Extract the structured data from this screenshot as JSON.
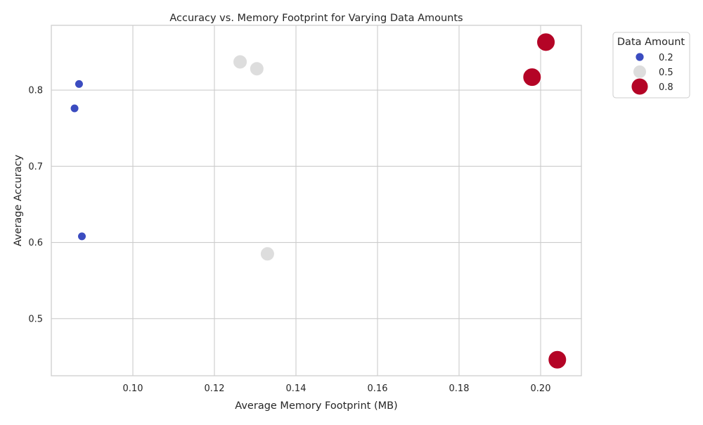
{
  "chart_data": {
    "type": "scatter",
    "title": "Accuracy vs. Memory Footprint for Varying Data Amounts",
    "xlabel": "Average Memory Footprint (MB)",
    "ylabel": "Average Accuracy",
    "xlim": [
      0.08,
      0.21
    ],
    "ylim": [
      0.425,
      0.885
    ],
    "xticks": [
      0.1,
      0.12,
      0.14,
      0.16,
      0.18,
      0.2
    ],
    "xtick_labels": [
      "0.10",
      "0.12",
      "0.14",
      "0.16",
      "0.18",
      "0.20"
    ],
    "yticks": [
      0.5,
      0.6,
      0.7,
      0.8
    ],
    "ytick_labels": [
      "0.5",
      "0.6",
      "0.7",
      "0.8"
    ],
    "grid": true,
    "legend": {
      "title": "Data Amount",
      "placement": "outside-top-right",
      "entries": [
        "0.2",
        "0.5",
        "0.8"
      ]
    },
    "series": [
      {
        "name": "0.2",
        "color": "#3b4cc0",
        "points": [
          {
            "x": 0.0868,
            "y": 0.808
          },
          {
            "x": 0.0857,
            "y": 0.776
          },
          {
            "x": 0.0875,
            "y": 0.608
          }
        ]
      },
      {
        "name": "0.5",
        "color": "#dddddd",
        "points": [
          {
            "x": 0.1263,
            "y": 0.837
          },
          {
            "x": 0.1304,
            "y": 0.828
          },
          {
            "x": 0.133,
            "y": 0.585
          }
        ]
      },
      {
        "name": "0.8",
        "color": "#b40426",
        "points": [
          {
            "x": 0.2013,
            "y": 0.863
          },
          {
            "x": 0.1979,
            "y": 0.817
          },
          {
            "x": 0.2041,
            "y": 0.446
          }
        ]
      }
    ]
  }
}
